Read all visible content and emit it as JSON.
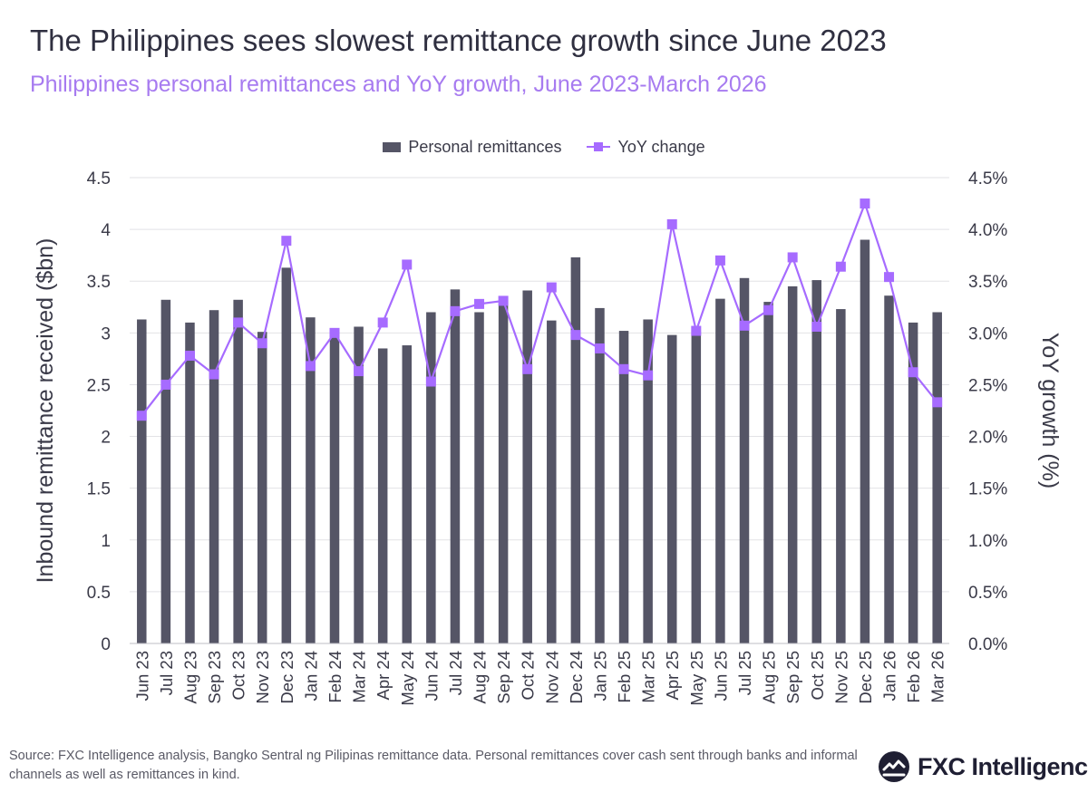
{
  "header": {
    "title": "The Philippines sees slowest remittance growth since June 2023",
    "subtitle": "Philippines personal remittances and YoY growth, June 2023-March 2026"
  },
  "legend": {
    "bar_label": "Personal remittances",
    "line_label": "YoY change"
  },
  "footer": {
    "source": "Source: FXC Intelligence analysis, Bangko Sentral ng Pilipinas remittance data. Personal remittances cover cash sent through banks and informal channels as well as remittances in kind.",
    "logo_text": "FXC Intelligence"
  },
  "colors": {
    "bar": "#555566",
    "line": "#a66bff",
    "subtitle": "#a77bf0",
    "grid": "#e2e2e6"
  },
  "chart_data": {
    "type": "bar+line",
    "title": "The Philippines sees slowest remittance growth since June 2023",
    "subtitle": "Philippines personal remittances and YoY growth, June 2023-March 2026",
    "ylabel_left": "Inbound remittance received ($bn)",
    "ylabel_right": "YoY growth (%)",
    "ylim_left": [
      0,
      4.5
    ],
    "ylim_right": [
      0,
      4.5
    ],
    "yticks_left": [
      "0",
      "0.5",
      "1",
      "1.5",
      "2",
      "2.5",
      "3",
      "3.5",
      "4",
      "4.5"
    ],
    "yticks_right": [
      "0.0%",
      "0.5%",
      "1.0%",
      "1.5%",
      "2.0%",
      "2.5%",
      "3.0%",
      "3.5%",
      "4.0%",
      "4.5%"
    ],
    "legend_position": "top-center",
    "grid": true,
    "categories": [
      "Jun 23",
      "Jul 23",
      "Aug 23",
      "Sep 23",
      "Oct 23",
      "Nov 23",
      "Dec 23",
      "Jan 24",
      "Feb 24",
      "Mar 24",
      "Apr 24",
      "May 24",
      "Jun 24",
      "Jul 24",
      "Aug 24",
      "Sep 24",
      "Oct 24",
      "Nov 24",
      "Dec 24",
      "Jan 25",
      "Feb 25",
      "Mar 25",
      "Apr 25",
      "May 25",
      "Jun 25",
      "Jul 25",
      "Aug 25",
      "Sep 25",
      "Oct 25",
      "Nov 25",
      "Dec 25",
      "Jan 26",
      "Feb 26",
      "Mar 26"
    ],
    "series": [
      {
        "name": "Personal remittances",
        "type": "bar",
        "axis": "left",
        "values": [
          3.13,
          3.32,
          3.1,
          3.22,
          3.32,
          3.01,
          3.63,
          3.15,
          2.96,
          3.06,
          2.85,
          2.88,
          3.2,
          3.42,
          3.2,
          3.29,
          3.41,
          3.12,
          3.73,
          3.24,
          3.02,
          3.13,
          2.98,
          3.01,
          3.33,
          3.53,
          3.3,
          3.45,
          3.51,
          3.23,
          3.9,
          3.36,
          3.1,
          3.2
        ]
      },
      {
        "name": "YoY change",
        "type": "line",
        "axis": "right",
        "values": [
          2.2,
          2.5,
          2.78,
          2.6,
          3.1,
          2.9,
          3.89,
          2.68,
          3.0,
          2.63,
          3.1,
          3.66,
          2.53,
          3.21,
          3.28,
          3.31,
          2.65,
          3.44,
          2.98,
          2.85,
          2.65,
          2.59,
          4.05,
          3.02,
          3.7,
          3.07,
          3.22,
          3.73,
          3.06,
          3.64,
          4.25,
          3.54,
          2.62,
          2.33
        ]
      }
    ]
  }
}
